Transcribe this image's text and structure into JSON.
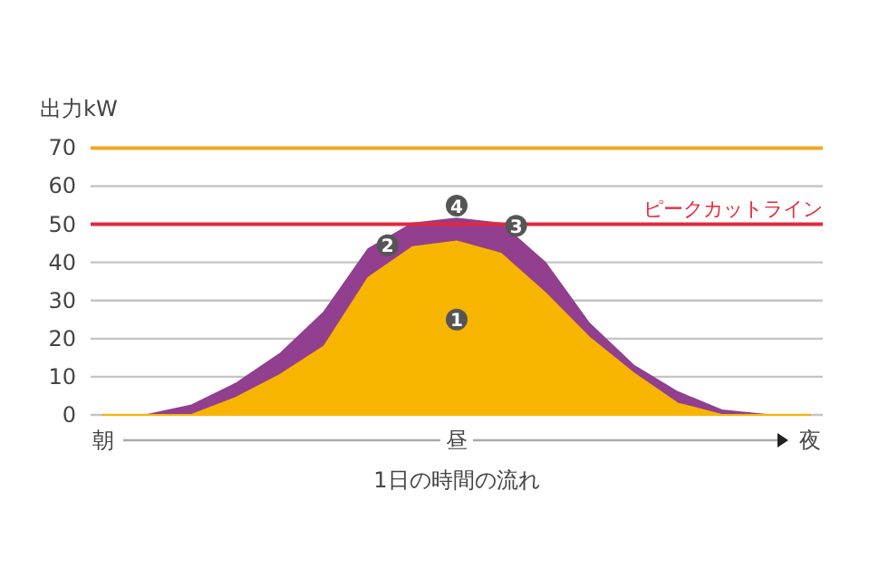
{
  "chart_data": {
    "type": "area",
    "ylabel": "出力kW",
    "xlabel": "1日の時間の流れ",
    "categories": [
      "朝",
      null,
      null,
      null,
      null,
      null,
      null,
      null,
      "昼",
      null,
      null,
      null,
      null,
      null,
      null,
      null,
      "夜"
    ],
    "ylim": [
      0,
      70
    ],
    "yticks": [
      0,
      10,
      20,
      30,
      40,
      50,
      60,
      70
    ],
    "grid": "y",
    "series": [
      {
        "color": "#913f8e",
        "values": [
          0,
          0,
          2.5,
          8.2,
          16,
          27,
          43.5,
          50.2,
          51.5,
          50.2,
          40,
          24,
          13,
          6,
          1.2,
          0,
          0
        ]
      },
      {
        "color": "#f7b500",
        "values": [
          0,
          0,
          0,
          4.5,
          10.5,
          18,
          36,
          44,
          45.5,
          42.3,
          32,
          20.3,
          11,
          3,
          0,
          0,
          0
        ]
      }
    ],
    "ref_lines": [
      {
        "axis": "y",
        "value": 70,
        "color": "#f5a623"
      },
      {
        "axis": "y",
        "value": 50,
        "label": "ピークカットライン",
        "color": "#e3283c"
      }
    ],
    "annotations": [
      {
        "text": "1",
        "x": "昼",
        "y": 25
      },
      {
        "text": "2",
        "y": 44.5
      },
      {
        "text": "3",
        "y": 49.6
      },
      {
        "text": "4",
        "x": "昼",
        "y": 54.9
      }
    ]
  }
}
